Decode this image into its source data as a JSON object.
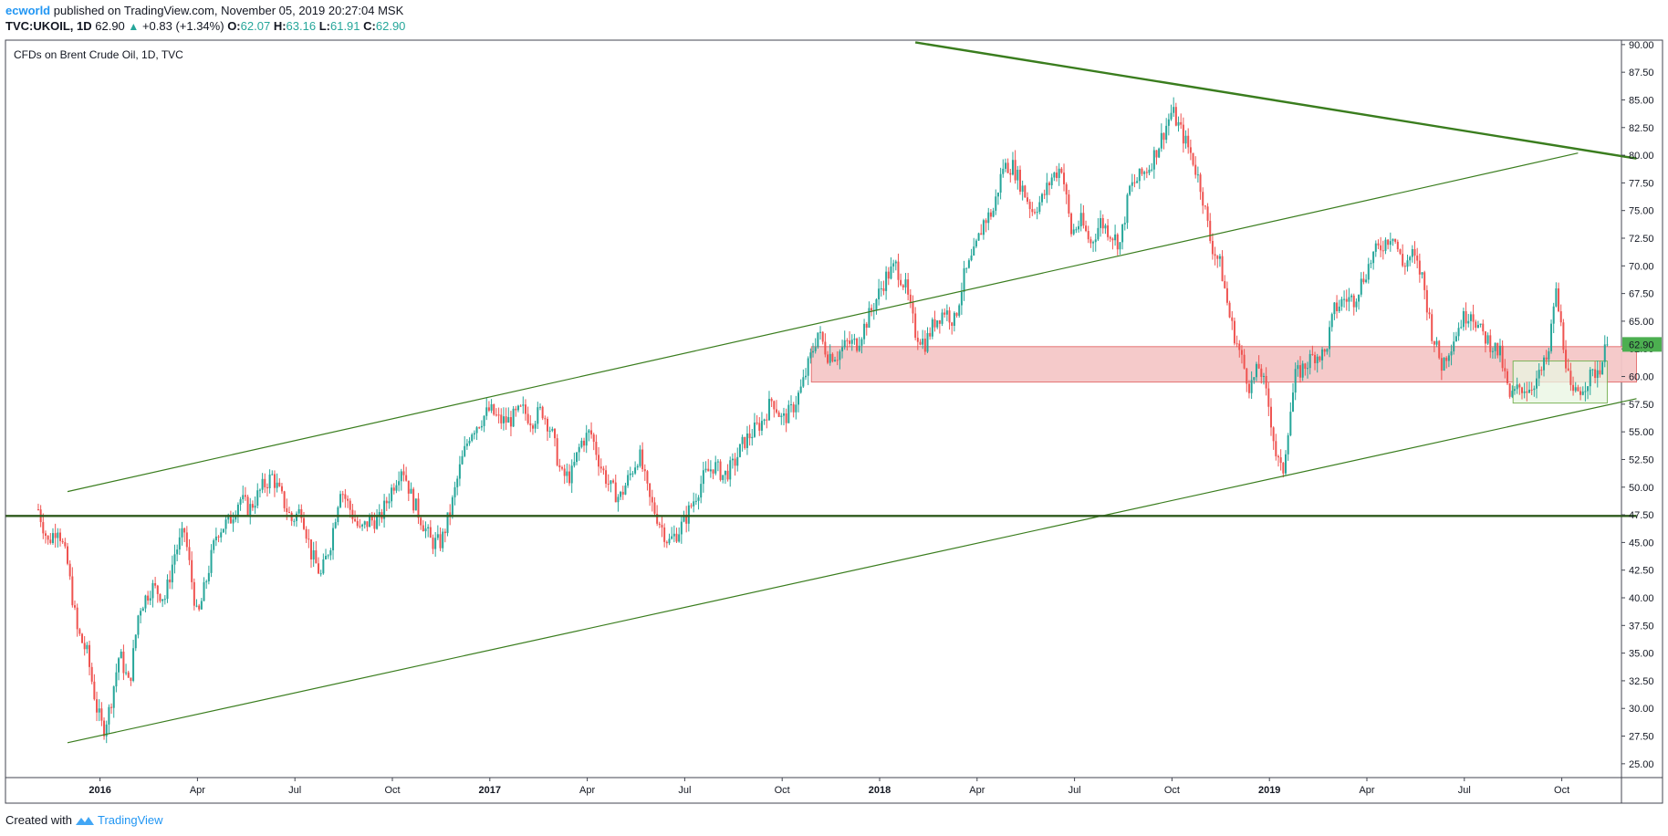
{
  "header": {
    "author": "ecworld",
    "published_text": "published on TradingView.com, November 05, 2019 20:27:04 MSK",
    "symbol": "TVC:UKOIL, 1D",
    "last": "62.90",
    "change": "+0.83 (+1.34%)",
    "o_label": "O:",
    "o_value": "62.07",
    "h_label": "H:",
    "h_value": "63.16",
    "l_label": "L:",
    "l_value": "61.91",
    "c_label": "C:",
    "c_value": "62.90"
  },
  "footer": {
    "created_with": "Created with",
    "brand": "TradingView"
  },
  "colors": {
    "up": "#26a69a",
    "down": "#ef5350",
    "trendline": "#3a7d1e",
    "zone_fill": "#f4c7c7",
    "zone_stroke": "#e57373",
    "box_fill": "#e8f5e1",
    "box_stroke": "#7cb55a",
    "price_badge": "#4caf50"
  },
  "chart_data": {
    "type": "candlestick",
    "legend": "CFDs on Brent Crude Oil, 1D, TVC",
    "last_price_label": "62.90",
    "y_ticks": [
      "25.00",
      "27.50",
      "30.00",
      "32.50",
      "35.00",
      "37.50",
      "40.00",
      "42.50",
      "45.00",
      "47.50",
      "50.00",
      "52.50",
      "55.00",
      "57.50",
      "60.00",
      "62.50",
      "65.00",
      "67.50",
      "70.00",
      "72.50",
      "75.00",
      "77.50",
      "80.00",
      "82.50",
      "85.00",
      "87.50",
      "90.00"
    ],
    "x_ticks": [
      {
        "label": "2016",
        "t": 1.0,
        "bold": true
      },
      {
        "label": "Apr",
        "t": 4.0
      },
      {
        "label": "Jul",
        "t": 7.0
      },
      {
        "label": "Oct",
        "t": 10.0
      },
      {
        "label": "2017",
        "t": 13.0,
        "bold": true
      },
      {
        "label": "Apr",
        "t": 16.0
      },
      {
        "label": "Jul",
        "t": 19.0
      },
      {
        "label": "Oct",
        "t": 22.0
      },
      {
        "label": "2018",
        "t": 25.0,
        "bold": true
      },
      {
        "label": "Apr",
        "t": 28.0
      },
      {
        "label": "Jul",
        "t": 31.0
      },
      {
        "label": "Oct",
        "t": 34.0
      },
      {
        "label": "2019",
        "t": 37.0,
        "bold": true
      },
      {
        "label": "Apr",
        "t": 40.0
      },
      {
        "label": "Jul",
        "t": 43.0
      },
      {
        "label": "Oct",
        "t": 46.0
      }
    ],
    "price_path": [
      [
        -0.9,
        48
      ],
      [
        -0.6,
        45
      ],
      [
        -0.3,
        46.5
      ],
      [
        0.0,
        43
      ],
      [
        0.3,
        37
      ],
      [
        0.6,
        35
      ],
      [
        0.9,
        30
      ],
      [
        1.1,
        28
      ],
      [
        1.3,
        30
      ],
      [
        1.6,
        35
      ],
      [
        1.9,
        32
      ],
      [
        2.2,
        39
      ],
      [
        2.6,
        41
      ],
      [
        3.0,
        40
      ],
      [
        3.3,
        44
      ],
      [
        3.6,
        46
      ],
      [
        4.0,
        38
      ],
      [
        4.3,
        42
      ],
      [
        4.6,
        46
      ],
      [
        5.0,
        47
      ],
      [
        5.3,
        49
      ],
      [
        5.6,
        48
      ],
      [
        6.0,
        50
      ],
      [
        6.3,
        51
      ],
      [
        6.6,
        49
      ],
      [
        6.9,
        47
      ],
      [
        7.2,
        48
      ],
      [
        7.5,
        44
      ],
      [
        7.8,
        42
      ],
      [
        8.1,
        45
      ],
      [
        8.4,
        50
      ],
      [
        8.7,
        48
      ],
      [
        9.0,
        46
      ],
      [
        9.3,
        47
      ],
      [
        9.6,
        47
      ],
      [
        10.0,
        50
      ],
      [
        10.3,
        52
      ],
      [
        10.6,
        49
      ],
      [
        10.9,
        47
      ],
      [
        11.2,
        45
      ],
      [
        11.5,
        45
      ],
      [
        11.8,
        48
      ],
      [
        12.1,
        52
      ],
      [
        12.4,
        55
      ],
      [
        12.7,
        56
      ],
      [
        13.0,
        57
      ],
      [
        13.3,
        56
      ],
      [
        13.6,
        56
      ],
      [
        14.0,
        57
      ],
      [
        14.3,
        56
      ],
      [
        14.6,
        57
      ],
      [
        14.9,
        55
      ],
      [
        15.2,
        51
      ],
      [
        15.5,
        51
      ],
      [
        15.8,
        54
      ],
      [
        16.1,
        55
      ],
      [
        16.4,
        52
      ],
      [
        16.7,
        50
      ],
      [
        17.0,
        49
      ],
      [
        17.3,
        51
      ],
      [
        17.6,
        53
      ],
      [
        17.9,
        49
      ],
      [
        18.2,
        47
      ],
      [
        18.5,
        45
      ],
      [
        18.8,
        46
      ],
      [
        19.0,
        47
      ],
      [
        19.3,
        49
      ],
      [
        19.6,
        51
      ],
      [
        19.9,
        52
      ],
      [
        20.2,
        51
      ],
      [
        20.5,
        52
      ],
      [
        20.8,
        54
      ],
      [
        21.1,
        55
      ],
      [
        21.4,
        56
      ],
      [
        21.7,
        58
      ],
      [
        22.0,
        56
      ],
      [
        22.3,
        57
      ],
      [
        22.6,
        59
      ],
      [
        22.9,
        62
      ],
      [
        23.1,
        64
      ],
      [
        23.4,
        62
      ],
      [
        23.7,
        62
      ],
      [
        24.0,
        63
      ],
      [
        24.3,
        63
      ],
      [
        24.6,
        65
      ],
      [
        24.9,
        67
      ],
      [
        25.2,
        69
      ],
      [
        25.5,
        70
      ],
      [
        25.8,
        68
      ],
      [
        26.1,
        64
      ],
      [
        26.4,
        63
      ],
      [
        26.7,
        65
      ],
      [
        27.0,
        66
      ],
      [
        27.3,
        65
      ],
      [
        27.6,
        69
      ],
      [
        27.9,
        71
      ],
      [
        28.2,
        74
      ],
      [
        28.5,
        75
      ],
      [
        28.8,
        79
      ],
      [
        29.1,
        79
      ],
      [
        29.4,
        77
      ],
      [
        29.7,
        75
      ],
      [
        30.0,
        76
      ],
      [
        30.3,
        78
      ],
      [
        30.6,
        79
      ],
      [
        30.9,
        73
      ],
      [
        31.2,
        74
      ],
      [
        31.5,
        72
      ],
      [
        31.8,
        74
      ],
      [
        32.1,
        73
      ],
      [
        32.4,
        72
      ],
      [
        32.7,
        77
      ],
      [
        33.0,
        78
      ],
      [
        33.3,
        79
      ],
      [
        33.6,
        81
      ],
      [
        34.0,
        84
      ],
      [
        34.3,
        82
      ],
      [
        34.6,
        80
      ],
      [
        34.9,
        77
      ],
      [
        35.2,
        72
      ],
      [
        35.5,
        70
      ],
      [
        35.8,
        65
      ],
      [
        36.1,
        62
      ],
      [
        36.4,
        59
      ],
      [
        36.7,
        61
      ],
      [
        37.0,
        57
      ],
      [
        37.2,
        53
      ],
      [
        37.4,
        51
      ],
      [
        37.6,
        56
      ],
      [
        37.8,
        60
      ],
      [
        38.1,
        61
      ],
      [
        38.4,
        62
      ],
      [
        38.7,
        62
      ],
      [
        39.0,
        66
      ],
      [
        39.3,
        67
      ],
      [
        39.6,
        67
      ],
      [
        39.9,
        69
      ],
      [
        40.2,
        71
      ],
      [
        40.5,
        72
      ],
      [
        40.8,
        73
      ],
      [
        41.1,
        70
      ],
      [
        41.4,
        71
      ],
      [
        41.7,
        69
      ],
      [
        42.0,
        64
      ],
      [
        42.3,
        61
      ],
      [
        42.6,
        63
      ],
      [
        42.9,
        65
      ],
      [
        43.2,
        66
      ],
      [
        43.5,
        64
      ],
      [
        43.8,
        63
      ],
      [
        44.1,
        62
      ],
      [
        44.4,
        58
      ],
      [
        44.7,
        59
      ],
      [
        45.0,
        59
      ],
      [
        45.3,
        60
      ],
      [
        45.6,
        62
      ],
      [
        45.8,
        68
      ],
      [
        46.0,
        64
      ],
      [
        46.3,
        58
      ],
      [
        46.6,
        59
      ],
      [
        46.9,
        60
      ],
      [
        47.2,
        61
      ],
      [
        47.4,
        62.9
      ]
    ],
    "trendlines": [
      {
        "name": "channel-upper",
        "p1": [
          0.0,
          49.6
        ],
        "p2": [
          46.5,
          80.2
        ]
      },
      {
        "name": "channel-lower",
        "p1": [
          0.0,
          26.9
        ],
        "p2": [
          48.3,
          58.0
        ]
      },
      {
        "name": "resistance-descending",
        "p1": [
          26.1,
          90.2
        ],
        "p2": [
          48.3,
          79.7
        ]
      },
      {
        "name": "horizontal-level",
        "p1": [
          -1.9,
          47.4
        ],
        "p2": [
          48.3,
          47.4
        ]
      }
    ],
    "zones": [
      {
        "name": "supply-zone",
        "t1": 22.9,
        "t2": 48.3,
        "y1": 59.5,
        "y2": 62.7
      },
      {
        "name": "range-box",
        "t1": 44.5,
        "t2": 47.4,
        "y1": 57.6,
        "y2": 61.4
      }
    ],
    "ylim": [
      23.75,
      90.4
    ],
    "grid": false
  }
}
